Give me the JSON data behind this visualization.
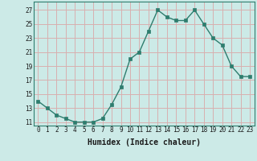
{
  "x": [
    0,
    1,
    2,
    3,
    4,
    5,
    6,
    7,
    8,
    9,
    10,
    11,
    12,
    13,
    14,
    15,
    16,
    17,
    18,
    19,
    20,
    21,
    22,
    23
  ],
  "y": [
    14,
    13,
    12,
    11.5,
    11,
    11,
    11,
    11.5,
    13.5,
    16,
    20,
    21,
    24,
    27,
    26,
    25.5,
    25.5,
    27,
    25,
    23,
    22,
    19,
    17.5,
    17.5
  ],
  "xlabel": "Humidex (Indice chaleur)",
  "ylabel_ticks": [
    11,
    13,
    15,
    17,
    19,
    21,
    23,
    25,
    27
  ],
  "line_color": "#2e7d6e",
  "marker_color": "#2e7d6e",
  "bg_color": "#cceae7",
  "grid_color": "#d8b0b0",
  "xlim": [
    -0.5,
    23.5
  ],
  "ylim": [
    10.5,
    28.2
  ],
  "xtick_labels": [
    "0",
    "1",
    "2",
    "3",
    "4",
    "5",
    "6",
    "7",
    "8",
    "9",
    "10",
    "11",
    "12",
    "13",
    "14",
    "15",
    "16",
    "17",
    "18",
    "19",
    "20",
    "21",
    "22",
    "23"
  ],
  "tick_fontsize": 5.5,
  "xlabel_fontsize": 7
}
